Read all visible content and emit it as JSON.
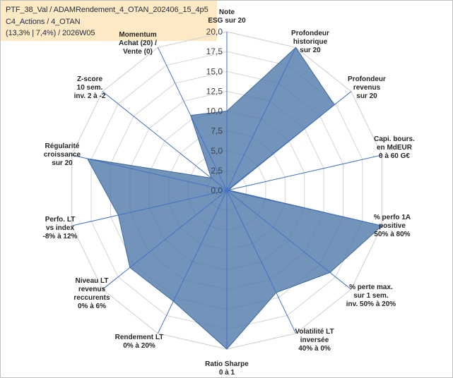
{
  "title_box": {
    "line1": "PTF_38_Val / ADAMRendement_4_OTAN_202406_15_4p5",
    "line2": "C4_Actions / 4_OTAN",
    "line3": "(13,3% | 7,4%) / 2026W05"
  },
  "chart_data": {
    "type": "radar",
    "title": "",
    "rlim": [
      0,
      20
    ],
    "tick_values": [
      0,
      2.5,
      5,
      7.5,
      10,
      12.5,
      15,
      17.5,
      20
    ],
    "tick_labels": [
      "0,0",
      "2,5",
      "5,0",
      "7,5",
      "10,0",
      "12,5",
      "15,0",
      "17,5",
      "20,0"
    ],
    "grid": true,
    "axes": [
      {
        "lines": [
          "Note",
          "ESG sur 20"
        ]
      },
      {
        "lines": [
          "Profondeur",
          "historique",
          "sur 20"
        ]
      },
      {
        "lines": [
          "Profondeur",
          "revenus",
          "sur 20"
        ]
      },
      {
        "lines": [
          "Capi. bours.",
          "en MdEUR",
          "0 à 60 G€"
        ]
      },
      {
        "lines": [
          "% perfo 1A",
          "positive",
          "50% à 80%"
        ]
      },
      {
        "lines": [
          "% perte max.",
          "sur 1 sem.",
          "inv. 50% à 20%"
        ]
      },
      {
        "lines": [
          "Volatilité LT",
          "inversée",
          "40% à 0%"
        ]
      },
      {
        "lines": [
          "Ratio Sharpe",
          "0 à 1"
        ]
      },
      {
        "lines": [
          "Rendement LT",
          "0% à 20%"
        ]
      },
      {
        "lines": [
          "Niveau LT",
          "revenus",
          "reccurents",
          "0% à 6%"
        ]
      },
      {
        "lines": [
          "Perfo. LT",
          "vs index",
          "-8% à 12%"
        ]
      },
      {
        "lines": [
          "Régularité",
          "croissance",
          "sur 20"
        ]
      },
      {
        "lines": [
          "Z-score",
          "10 sem.",
          "inv. 2 à -2"
        ]
      },
      {
        "lines": [
          "Momentum",
          "Achat (20) /",
          "Vente (0)"
        ],
        "highlight_first": true
      }
    ],
    "series": [
      {
        "name": "PTF_38_Val",
        "values": [
          10.0,
          20.0,
          17.3,
          0.2,
          20.0,
          16.6,
          14.3,
          20.0,
          15.5,
          15.6,
          14.0,
          18.0,
          2.5,
          10.5
        ],
        "fill": "#4a76a8",
        "fill_opacity": 0.78,
        "stroke": "#3e6a9c"
      }
    ]
  },
  "colors": {
    "grid": "#d4d4d4",
    "spoke": "#4472c4",
    "momentum": "#a08a6a",
    "title_bg": "#fde9c4"
  }
}
